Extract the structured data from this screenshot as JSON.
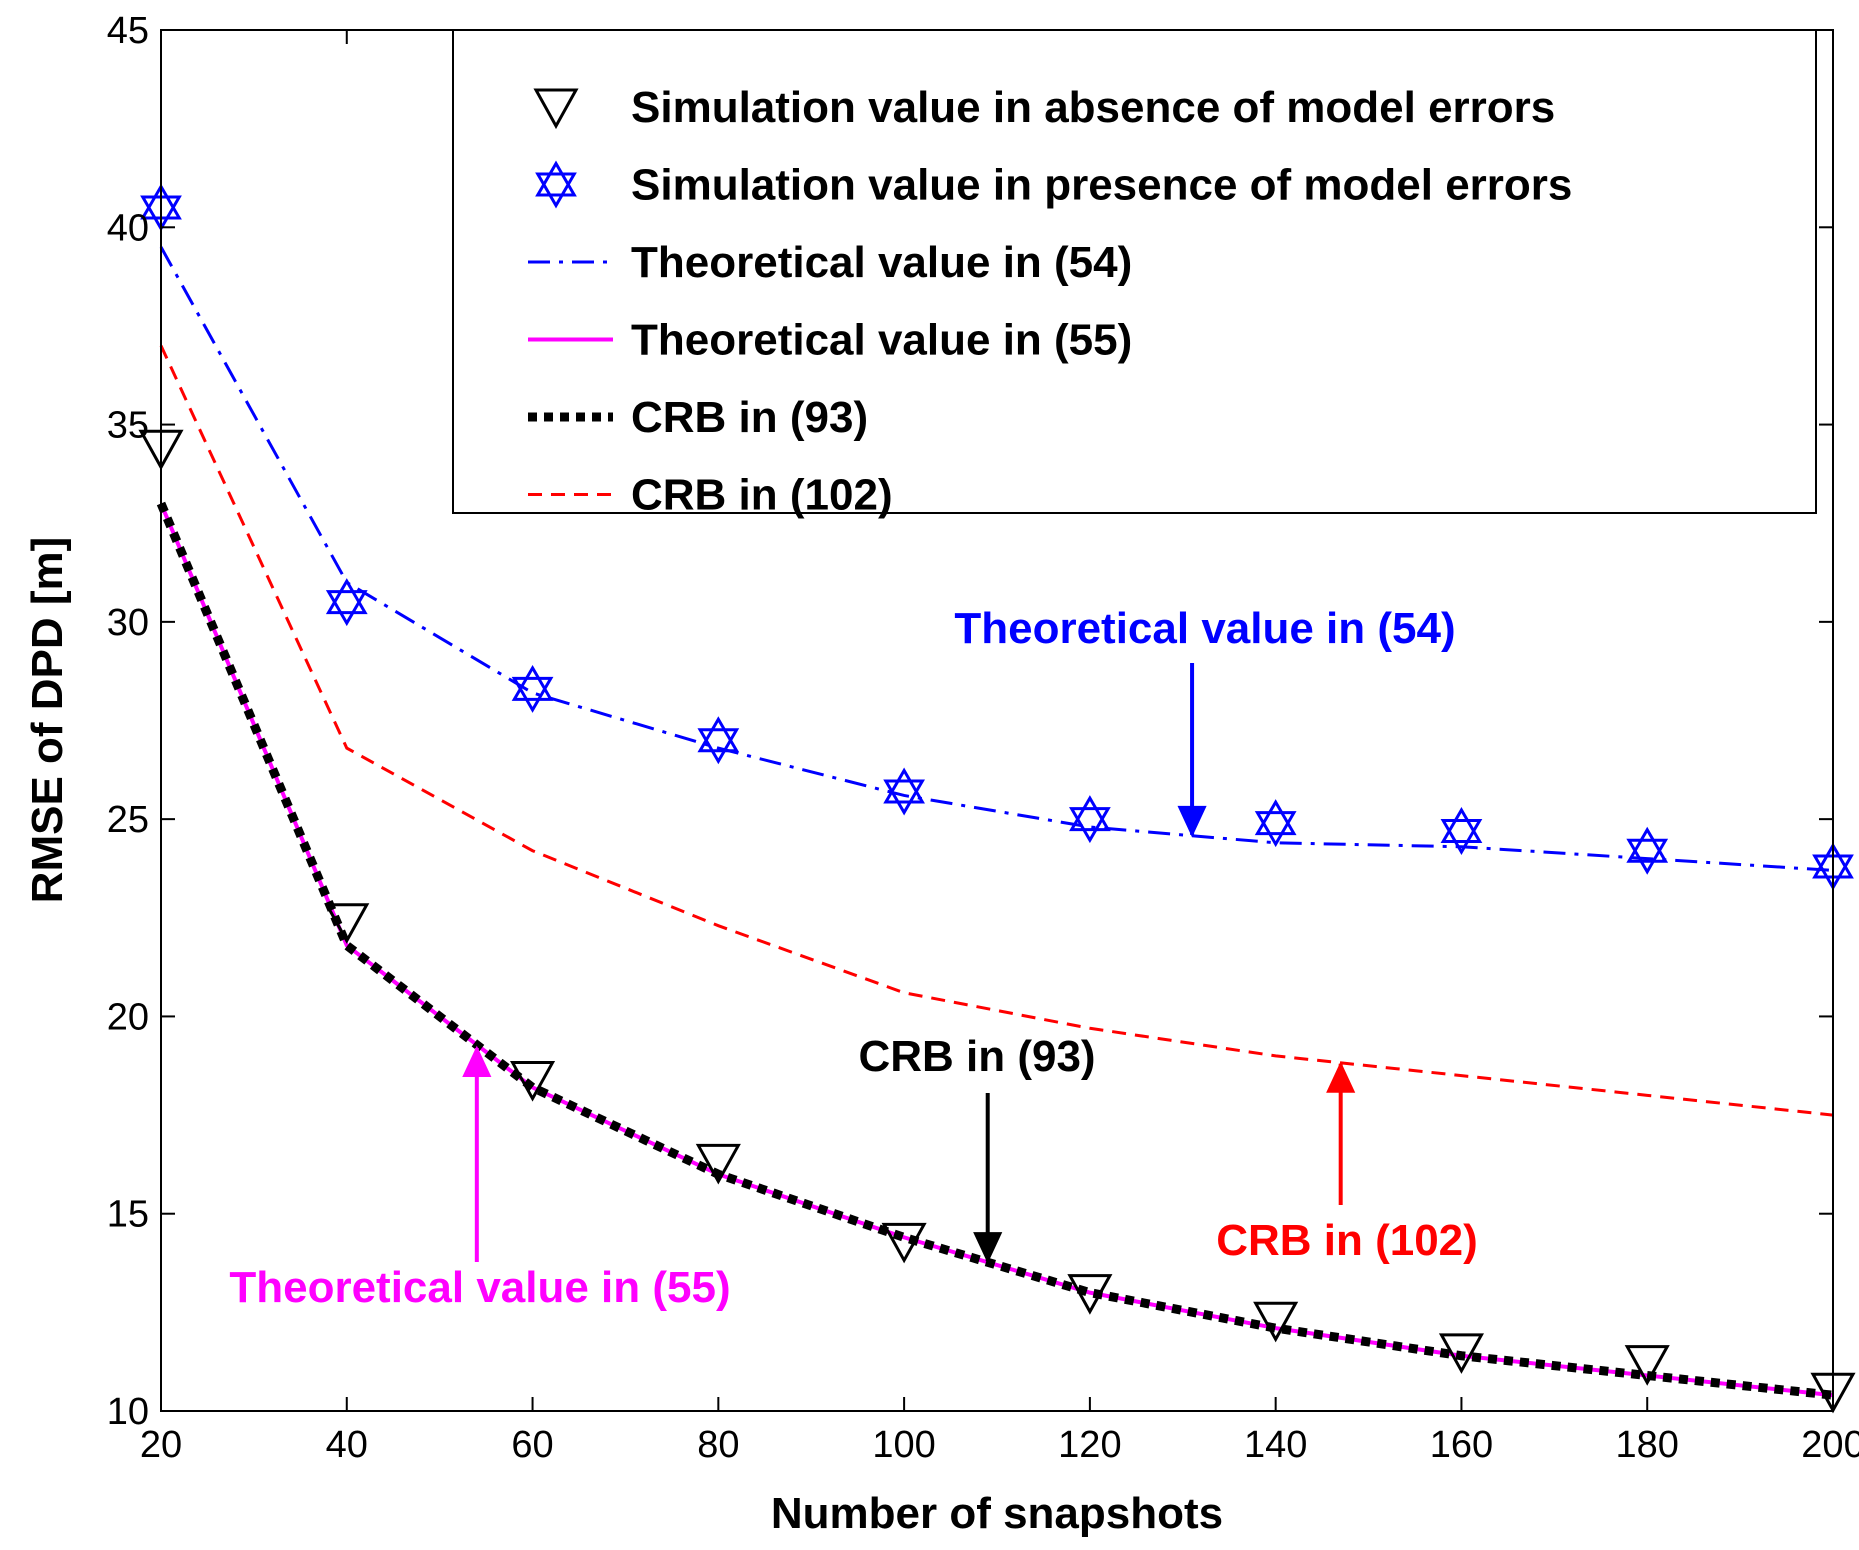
{
  "chart_data": {
    "type": "line",
    "title": "",
    "xlabel": "Number of snapshots",
    "ylabel": "RMSE of DPD [m]",
    "xlim": [
      20,
      200
    ],
    "ylim": [
      10,
      45
    ],
    "xticks": [
      20,
      40,
      60,
      80,
      100,
      120,
      140,
      160,
      180,
      200
    ],
    "yticks": [
      10,
      15,
      20,
      25,
      30,
      35,
      40,
      45
    ],
    "grid": false,
    "legend_position": "top-right",
    "x": [
      20,
      40,
      60,
      80,
      100,
      120,
      140,
      160,
      180,
      200
    ],
    "series": [
      {
        "name": "Simulation value in absence of model errors",
        "style": "marker-triangle-down",
        "color": "#000000",
        "values": [
          34.4,
          22.4,
          18.4,
          16.3,
          14.3,
          13.0,
          12.3,
          11.5,
          11.2,
          10.5
        ]
      },
      {
        "name": "Simulation value in presence of model errors",
        "style": "marker-hexagram",
        "color": "#0000ff",
        "values": [
          40.5,
          30.5,
          28.3,
          27.0,
          25.7,
          25.0,
          24.9,
          24.7,
          24.2,
          23.8
        ]
      },
      {
        "name": "Theoretical value in (54)",
        "style": "dashdot",
        "color": "#0000ff",
        "values": [
          39.5,
          31.0,
          28.2,
          26.8,
          25.6,
          24.8,
          24.4,
          24.3,
          24.0,
          23.7
        ]
      },
      {
        "name": "Theoretical value in (55)",
        "style": "solid",
        "color": "#ff00ff",
        "values": [
          33.0,
          21.8,
          18.2,
          16.0,
          14.4,
          13.0,
          12.1,
          11.4,
          10.9,
          10.4
        ]
      },
      {
        "name": "CRB in (93)",
        "style": "dotted",
        "color": "#000000",
        "values": [
          33.0,
          21.8,
          18.2,
          16.0,
          14.4,
          13.0,
          12.1,
          11.4,
          10.9,
          10.4
        ]
      },
      {
        "name": "CRB in (102)",
        "style": "dashed",
        "color": "#ff0000",
        "values": [
          37.0,
          26.8,
          24.2,
          22.3,
          20.6,
          19.7,
          19.0,
          18.5,
          18.0,
          17.5
        ]
      }
    ],
    "annotations": [
      {
        "text": "Theoretical value in (54)",
        "color": "#0000ff",
        "arrow_to": [
          131,
          24.6
        ],
        "direction": "down"
      },
      {
        "text": "CRB in (93)",
        "color": "#000000",
        "arrow_to": [
          109,
          13.8
        ],
        "direction": "down"
      },
      {
        "text": "Theoretical value in (55)",
        "color": "#ff00ff",
        "arrow_to": [
          54,
          19.2
        ],
        "direction": "up"
      },
      {
        "text": "CRB in (102)",
        "color": "#ff0000",
        "arrow_to": [
          147,
          18.8
        ],
        "direction": "up"
      }
    ]
  }
}
